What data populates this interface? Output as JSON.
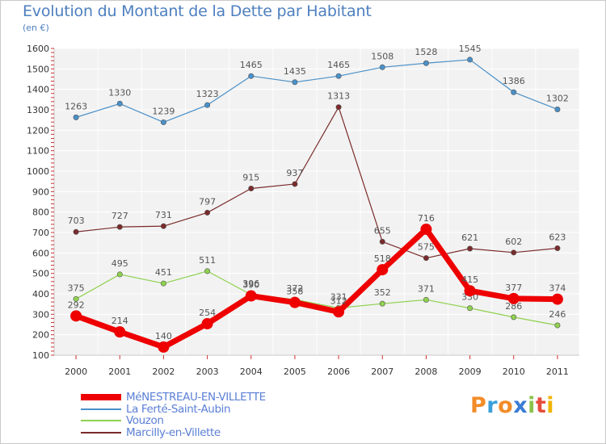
{
  "title": "Evolution du Montant de la Dette par Habitant",
  "subtitle": "(en €)",
  "logo": {
    "text": "Proxiti",
    "colors": [
      "#f28c28",
      "#3aa0d8",
      "#f28c28",
      "#3a7bd5",
      "#8bc34a",
      "#e74c3c",
      "#f0b400"
    ]
  },
  "chart_data": {
    "type": "line",
    "title": "Evolution du Montant de la Dette par Habitant",
    "subtitle": "(en €)",
    "xlabel": "",
    "ylabel": "",
    "x": [
      "2000",
      "2001",
      "2002",
      "2003",
      "2004",
      "2005",
      "2006",
      "2007",
      "2008",
      "2009",
      "2010",
      "2011"
    ],
    "ylim": [
      100,
      1600
    ],
    "yticks": [
      100,
      200,
      300,
      400,
      500,
      600,
      700,
      800,
      900,
      1000,
      1100,
      1200,
      1300,
      1400,
      1500,
      1600
    ],
    "grid": true,
    "legend_position": "bottom-left",
    "series": [
      {
        "name": "MéNESTREAU-EN-VILLETTE",
        "color": "#ee0000",
        "values": [
          292,
          214,
          140,
          254,
          390,
          358,
          312,
          518,
          716,
          415,
          377,
          374
        ]
      },
      {
        "name": "La Ferté-Saint-Aubin",
        "color": "#4a90c8",
        "values": [
          1263,
          1330,
          1239,
          1323,
          1465,
          1435,
          1465,
          1508,
          1528,
          1545,
          1386,
          1302
        ]
      },
      {
        "name": "Vouzon",
        "color": "#8fd14f",
        "values": [
          375,
          495,
          451,
          511,
          396,
          372,
          331,
          352,
          371,
          330,
          286,
          246
        ]
      },
      {
        "name": "Marcilly-en-Villette",
        "color": "#7a2b2b",
        "values": [
          703,
          727,
          731,
          797,
          915,
          937,
          1313,
          655,
          575,
          621,
          602,
          623
        ]
      }
    ]
  }
}
